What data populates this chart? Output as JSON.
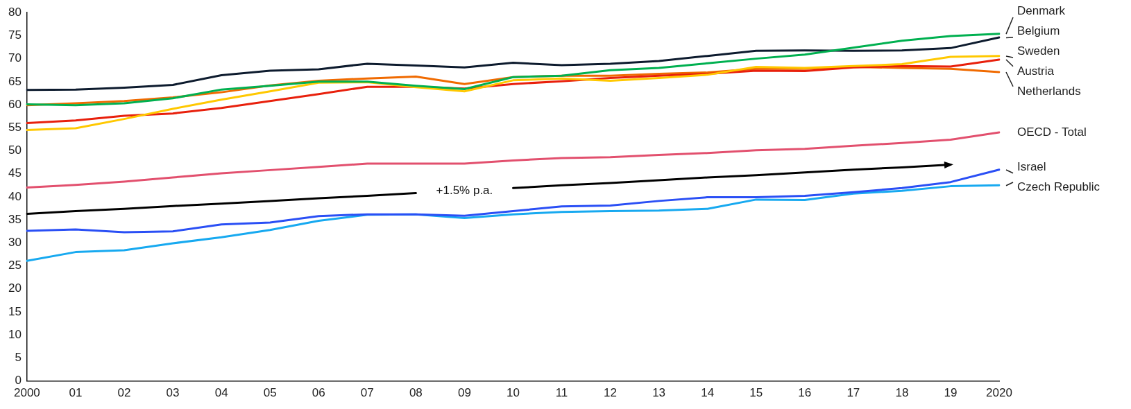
{
  "chart_data": {
    "type": "line",
    "categories": [
      "2000",
      "01",
      "02",
      "03",
      "04",
      "05",
      "06",
      "07",
      "08",
      "09",
      "10",
      "11",
      "12",
      "13",
      "14",
      "15",
      "16",
      "17",
      "18",
      "19",
      "2020"
    ],
    "ylim": [
      0,
      80
    ],
    "yticks": [
      0,
      5,
      10,
      15,
      20,
      25,
      30,
      35,
      40,
      45,
      50,
      55,
      60,
      65,
      70,
      75,
      80
    ],
    "grid": false,
    "legend": false,
    "line_style": "solid",
    "annotations": [
      "+1.5% p.a."
    ],
    "series": [
      {
        "name": "Denmark",
        "color": "#00b050",
        "values": [
          60.1,
          59.9,
          60.3,
          61.4,
          63.3,
          64.1,
          65.0,
          65.0,
          64.1,
          63.4,
          66.0,
          66.3,
          67.5,
          68.0,
          69.0,
          70.0,
          70.9,
          72.4,
          73.9,
          74.9,
          75.4
        ]
      },
      {
        "name": "Belgium",
        "color": "#0d1b2e",
        "values": [
          63.2,
          63.3,
          63.7,
          64.3,
          66.4,
          67.4,
          67.7,
          68.9,
          68.5,
          68.1,
          69.1,
          68.6,
          68.9,
          69.5,
          70.6,
          71.7,
          71.8,
          71.7,
          71.8,
          72.3,
          74.6
        ]
      },
      {
        "name": "Sweden",
        "color": "#ffc800",
        "values": [
          54.5,
          54.9,
          56.9,
          59.1,
          61.1,
          62.9,
          64.8,
          64.9,
          63.8,
          62.9,
          65.3,
          65.7,
          65.2,
          65.8,
          66.5,
          68.2,
          68.0,
          68.4,
          68.8,
          70.4,
          70.6
        ]
      },
      {
        "name": "Austria",
        "color": "#e8200c",
        "values": [
          56.0,
          56.6,
          57.6,
          58.1,
          59.3,
          60.8,
          62.3,
          63.9,
          63.9,
          63.5,
          64.5,
          65.1,
          65.8,
          66.3,
          66.7,
          67.4,
          67.3,
          68.1,
          68.4,
          68.3,
          69.8
        ]
      },
      {
        "name": "Netherlands",
        "color": "#f06a00",
        "values": [
          59.9,
          60.3,
          60.8,
          61.6,
          62.7,
          64.2,
          65.2,
          65.7,
          66.1,
          64.5,
          66.0,
          66.3,
          66.3,
          66.7,
          67.0,
          67.8,
          67.8,
          68.2,
          68.0,
          67.8,
          67.1
        ]
      },
      {
        "name": "OECD - Total",
        "color": "#e2506e",
        "values": [
          42.0,
          42.6,
          43.3,
          44.2,
          45.1,
          45.8,
          46.5,
          47.2,
          47.2,
          47.2,
          47.9,
          48.4,
          48.6,
          49.1,
          49.5,
          50.1,
          50.4,
          51.1,
          51.7,
          52.4,
          54.0
        ]
      },
      {
        "name": "Israel",
        "color": "#2a4ff5",
        "values": [
          32.6,
          32.9,
          32.3,
          32.5,
          34.0,
          34.4,
          35.8,
          36.2,
          36.2,
          35.9,
          36.9,
          37.9,
          38.1,
          39.1,
          39.9,
          39.9,
          40.2,
          41.0,
          41.9,
          43.2,
          45.9
        ]
      },
      {
        "name": "Czech Republic",
        "color": "#17a9f0",
        "values": [
          26.1,
          28.0,
          28.4,
          29.9,
          31.2,
          32.8,
          34.8,
          36.1,
          36.2,
          35.4,
          36.2,
          36.7,
          36.9,
          37.0,
          37.4,
          39.4,
          39.3,
          40.7,
          41.3,
          42.3,
          42.5
        ]
      },
      {
        "type": "line",
        "color": "#000000",
        "values": [
          36.3,
          36.9,
          37.4,
          38.0,
          38.5,
          39.1,
          39.7,
          40.2,
          40.8,
          null,
          41.9,
          42.5,
          43.0,
          43.6,
          44.2,
          44.7,
          45.3,
          45.9,
          46.4,
          47.0,
          null
        ]
      }
    ]
  }
}
